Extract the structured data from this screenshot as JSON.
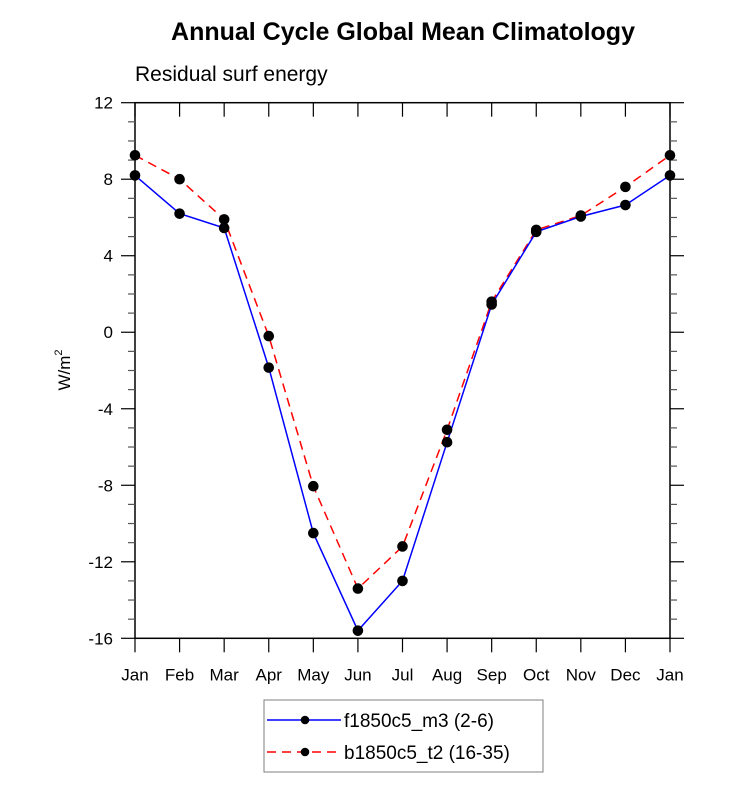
{
  "chart_data": {
    "type": "line",
    "title": "Annual Cycle Global Mean Climatology",
    "subtitle": "Residual surf energy",
    "xlabel": "",
    "ylabel": "W/m",
    "ylabel_superscript": "2",
    "categories": [
      "Jan",
      "Feb",
      "Mar",
      "Apr",
      "May",
      "Jun",
      "Jul",
      "Aug",
      "Sep",
      "Oct",
      "Nov",
      "Dec",
      "Jan"
    ],
    "ylim": [
      -16,
      12
    ],
    "yticks": [
      12,
      8,
      4,
      0,
      -4,
      -8,
      -12,
      -16
    ],
    "ytick_labels": [
      "12",
      "8",
      "4",
      "0",
      "-4",
      "-8",
      "-12",
      "-16"
    ],
    "grid": false,
    "legend_position": "bottom-center",
    "series": [
      {
        "name": "f1850c5_m3 (2-6)",
        "color": "#0000ff",
        "line_style": "solid",
        "marker": "filled-circle",
        "marker_color": "#000000",
        "values": [
          8.2,
          6.2,
          5.45,
          -1.85,
          -10.5,
          -15.6,
          -13.0,
          -5.75,
          1.45,
          5.25,
          6.05,
          6.65,
          8.2
        ]
      },
      {
        "name": "b1850c5_t2 (16-35)",
        "color": "#ff0000",
        "line_style": "dashed",
        "marker": "filled-circle",
        "marker_color": "#000000",
        "values": [
          9.25,
          8.0,
          5.9,
          -0.2,
          -8.05,
          -13.4,
          -11.2,
          -5.1,
          1.6,
          5.35,
          6.1,
          7.6,
          9.25
        ]
      }
    ]
  }
}
